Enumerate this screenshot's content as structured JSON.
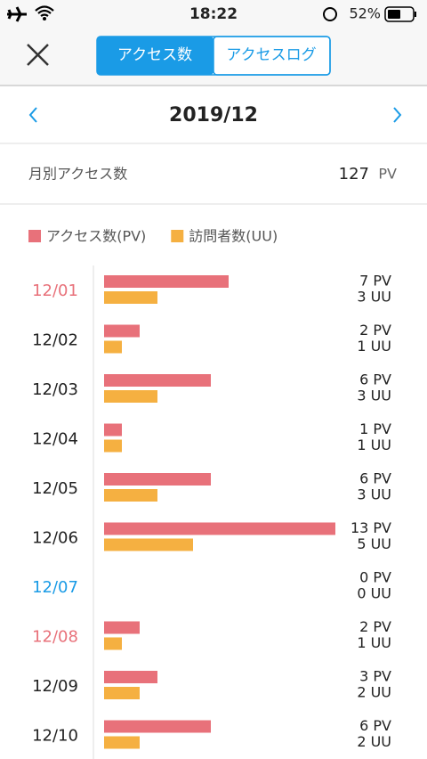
{
  "status_bar": {
    "time": "18:22",
    "battery": "52%"
  },
  "header": {
    "tabs": [
      "アクセス数",
      "アクセスログ"
    ],
    "active_tab": 0
  },
  "month_nav": {
    "month": "2019/12"
  },
  "summary": {
    "label": "月別アクセス数",
    "value": 127,
    "unit": "PV"
  },
  "chart_data": {
    "type": "bar",
    "orientation": "horizontal",
    "categories": [
      "12/01",
      "12/02",
      "12/03",
      "12/04",
      "12/05",
      "12/06",
      "12/07",
      "12/08",
      "12/09",
      "12/10"
    ],
    "category_colors": [
      "#e8717a",
      "#222222",
      "#222222",
      "#222222",
      "#222222",
      "#222222",
      "#1a9be6",
      "#e8717a",
      "#222222",
      "#222222"
    ],
    "series": [
      {
        "name": "アクセス数(PV)",
        "color": "#e8717a",
        "values": [
          7,
          2,
          6,
          1,
          6,
          13,
          0,
          2,
          3,
          6
        ],
        "value_labels": [
          "7 PV",
          "2 PV",
          "6 PV",
          "1 PV",
          "6 PV",
          "13 PV",
          "0 PV",
          "2 PV",
          "3 PV",
          "6 PV"
        ]
      },
      {
        "name": "訪問者数(UU)",
        "color": "#f5b041",
        "values": [
          3,
          1,
          3,
          1,
          3,
          5,
          0,
          1,
          2,
          2
        ],
        "value_labels": [
          "3 UU",
          "1 UU",
          "3 UU",
          "1 UU",
          "3 UU",
          "5 UU",
          "0 UU",
          "1 UU",
          "2 UU",
          "2 UU"
        ]
      }
    ]
  }
}
